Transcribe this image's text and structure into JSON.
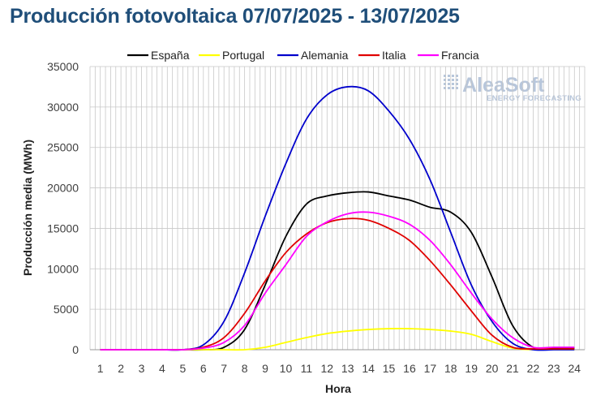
{
  "chart_data": {
    "type": "line",
    "title": "Producción fotovoltaica 07/07/2025 - 13/07/2025",
    "xlabel": "Hora",
    "ylabel": "Producción media (MWh)",
    "x": [
      1,
      2,
      3,
      4,
      5,
      6,
      7,
      8,
      9,
      10,
      11,
      12,
      13,
      14,
      15,
      16,
      17,
      18,
      19,
      20,
      21,
      22,
      23,
      24
    ],
    "xlim": [
      1,
      24
    ],
    "ylim": [
      0,
      35000
    ],
    "yticks": [
      0,
      5000,
      10000,
      15000,
      20000,
      25000,
      30000,
      35000
    ],
    "grid": true,
    "legend_position": "top",
    "series": [
      {
        "name": "España",
        "color": "#000000",
        "values": [
          0,
          0,
          0,
          0,
          0,
          0,
          300,
          2500,
          8000,
          14000,
          18000,
          19000,
          19400,
          19500,
          19000,
          18500,
          17600,
          17000,
          14500,
          9000,
          3000,
          300,
          200,
          200
        ]
      },
      {
        "name": "Portugal",
        "color": "#ffff00",
        "values": [
          0,
          0,
          0,
          0,
          0,
          0,
          0,
          0,
          300,
          900,
          1500,
          2000,
          2300,
          2500,
          2600,
          2600,
          2500,
          2300,
          1900,
          1000,
          200,
          0,
          0,
          0
        ]
      },
      {
        "name": "Alemania",
        "color": "#0000cc",
        "values": [
          0,
          0,
          0,
          0,
          0,
          600,
          3500,
          9500,
          16500,
          23000,
          28500,
          31500,
          32500,
          32000,
          29500,
          26000,
          21000,
          14500,
          8000,
          3500,
          800,
          0,
          0,
          0
        ]
      },
      {
        "name": "Italia",
        "color": "#e00000",
        "values": [
          0,
          0,
          0,
          0,
          0,
          300,
          1500,
          4500,
          8500,
          12000,
          14300,
          15700,
          16200,
          16000,
          15000,
          13500,
          11000,
          8000,
          4800,
          1800,
          300,
          100,
          100,
          100
        ]
      },
      {
        "name": "Francia",
        "color": "#ff00ff",
        "values": [
          0,
          0,
          0,
          0,
          0,
          200,
          900,
          3000,
          7000,
          10500,
          14000,
          15800,
          16800,
          17000,
          16500,
          15500,
          13500,
          10500,
          7000,
          3800,
          1500,
          300,
          300,
          300
        ]
      }
    ]
  },
  "logo": {
    "text": "AleaSoft",
    "subtext": "ENERGY FORECASTING"
  }
}
